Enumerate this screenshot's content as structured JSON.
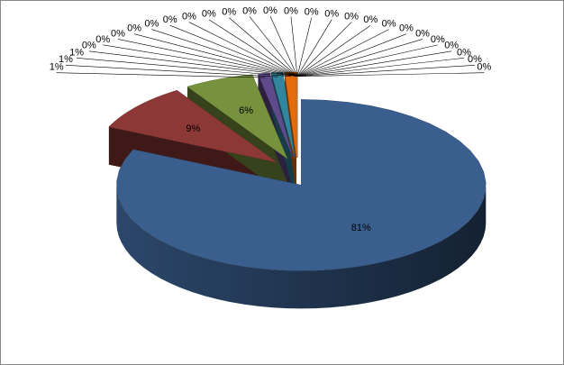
{
  "chart_data": {
    "type": "pie3d",
    "values": [
      81,
      9,
      6,
      1,
      1,
      1,
      0,
      0,
      0,
      0,
      0,
      0,
      0,
      0,
      0,
      0,
      0,
      0,
      0,
      0,
      0,
      0,
      0,
      0,
      0,
      0,
      0,
      0,
      0,
      0
    ],
    "value_labels": [
      "81%",
      "9%",
      "6%",
      "1%",
      "1%",
      "1%",
      "0%",
      "0%",
      "0%",
      "0%",
      "0%",
      "0%",
      "0%",
      "0%",
      "0%",
      "0%",
      "0%",
      "0%",
      "0%",
      "0%",
      "0%",
      "0%",
      "0%",
      "0%",
      "0%",
      "0%",
      "0%",
      "0%",
      "0%",
      "0%"
    ],
    "colors": [
      "#3a5f8f",
      "#8c3836",
      "#76923c",
      "#5f4a8b",
      "#31859c",
      "#e46c0a"
    ]
  }
}
